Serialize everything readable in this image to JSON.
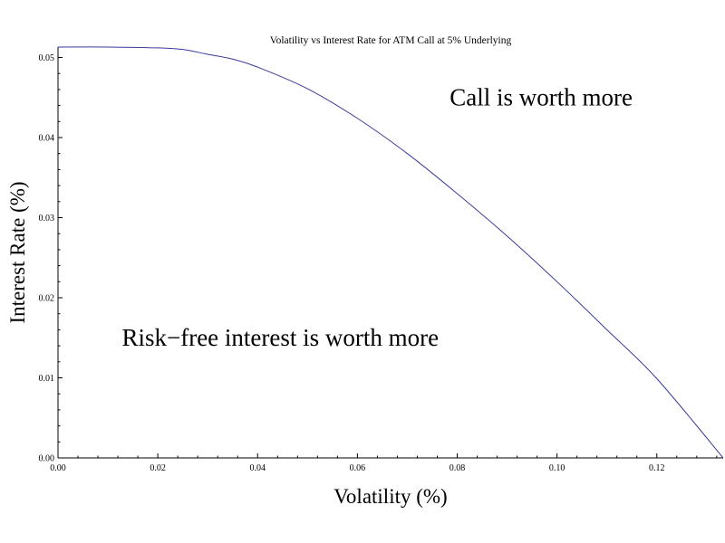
{
  "chart_data": {
    "type": "line",
    "title": "Volatility vs Interest Rate for ATM Call at 5% Underlying",
    "xlabel": "Volatility (%)",
    "ylabel": "Interest Rate (%)",
    "xlim": [
      0,
      0.1333
    ],
    "ylim": [
      0,
      0.0513
    ],
    "grid": false,
    "x_ticks": [
      "0.00",
      "0.02",
      "0.04",
      "0.06",
      "0.08",
      "0.10",
      "0.12"
    ],
    "y_ticks": [
      "0.00",
      "0.01",
      "0.02",
      "0.03",
      "0.04",
      "0.05"
    ],
    "series": [
      {
        "color": "#3a3a9a",
        "x": [
          0.0,
          0.01,
          0.02,
          0.025,
          0.03,
          0.035,
          0.04,
          0.05,
          0.06,
          0.07,
          0.08,
          0.09,
          0.1,
          0.11,
          0.12,
          0.1333
        ],
        "y": [
          0.0513,
          0.0513,
          0.0512,
          0.051,
          0.0504,
          0.0498,
          0.0488,
          0.0461,
          0.0424,
          0.038,
          0.033,
          0.0277,
          0.022,
          0.016,
          0.0099,
          0.0
        ]
      }
    ],
    "annotations": [
      {
        "text": "Call is worth more",
        "x": 0.0785,
        "y": 0.044
      },
      {
        "text": "Risk−free interest is worth more",
        "x": 0.0128,
        "y": 0.014
      }
    ]
  }
}
